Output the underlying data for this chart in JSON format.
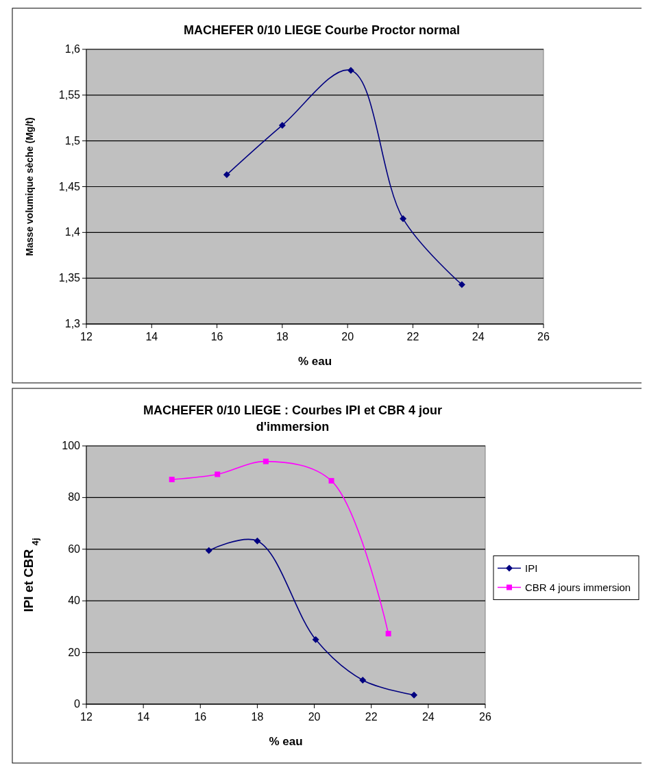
{
  "chart_data": [
    {
      "type": "line",
      "title": "MACHEFER 0/10 LIEGE  Courbe Proctor normal",
      "xlabel": "% eau",
      "ylabel": "Masse volumique sèche (Mg/t)",
      "xlim": [
        12,
        26
      ],
      "xticks": [
        12,
        14,
        16,
        18,
        20,
        22,
        24,
        26
      ],
      "ylim": [
        1.3,
        1.6
      ],
      "yticks": [
        {
          "value": 1.3,
          "label": "1,3"
        },
        {
          "value": 1.35,
          "label": "1,35"
        },
        {
          "value": 1.4,
          "label": "1,4"
        },
        {
          "value": 1.45,
          "label": "1,45"
        },
        {
          "value": 1.5,
          "label": "1,5"
        },
        {
          "value": 1.55,
          "label": "1,55"
        },
        {
          "value": 1.6,
          "label": "1,6"
        }
      ],
      "grid": "y",
      "marker": "diamond",
      "series": [
        {
          "color": "#000080",
          "x": [
            16.3,
            18,
            20.1,
            21.7,
            23.5
          ],
          "values": [
            1.463,
            1.517,
            1.577,
            1.415,
            1.343
          ]
        }
      ]
    },
    {
      "type": "line",
      "title": "MACHEFER 0/10 LIEGE : Courbes IPI et CBR 4 jour d'immersion",
      "xlabel": "% eau",
      "ylabel": "IPI et CBR $_{4j}$",
      "xlim": [
        12,
        26
      ],
      "xticks": [
        12,
        14,
        16,
        18,
        20,
        22,
        24,
        26
      ],
      "ylim": [
        0,
        100
      ],
      "yticks": [
        0,
        20,
        40,
        60,
        80,
        100
      ],
      "grid": "y",
      "legend": "right",
      "series": [
        {
          "name": "IPI",
          "color": "#000080",
          "marker": "diamond",
          "x": [
            16.3,
            18,
            20.05,
            21.7,
            23.5
          ],
          "values": [
            59.5,
            63.2,
            25,
            9.3,
            3.5
          ]
        },
        {
          "name": "CBR 4 jours immersion",
          "color": "#ff00ff",
          "marker": "square",
          "x": [
            15,
            16.6,
            18.3,
            20.6,
            22.6
          ],
          "values": [
            87,
            89,
            94,
            86.5,
            27.3
          ]
        }
      ]
    }
  ]
}
